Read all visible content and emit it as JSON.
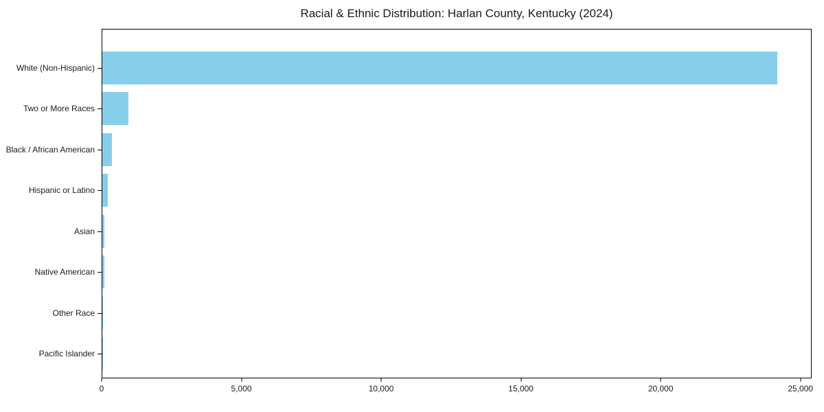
{
  "chart_data": {
    "type": "bar",
    "orientation": "horizontal",
    "title": "Racial & Ethnic Distribution: Harlan County, Kentucky (2024)",
    "categories": [
      "White (Non-Hispanic)",
      "Two or More Races",
      "Black / African American",
      "Hispanic or Latino",
      "Asian",
      "Native American",
      "Other Race",
      "Pacific Islander"
    ],
    "values": [
      24190,
      930,
      340,
      190,
      70,
      65,
      25,
      5
    ],
    "xlabel": "",
    "ylabel": "",
    "xlim": [
      0,
      25400
    ],
    "x_ticks": [
      0,
      5000,
      10000,
      15000,
      20000,
      25000
    ],
    "x_tick_labels": [
      "0",
      "5,000",
      "10,000",
      "15,000",
      "20,000",
      "25,000"
    ],
    "bar_color": "#87CEEB",
    "axis_color": "#000000",
    "grid": false,
    "legend": null
  }
}
